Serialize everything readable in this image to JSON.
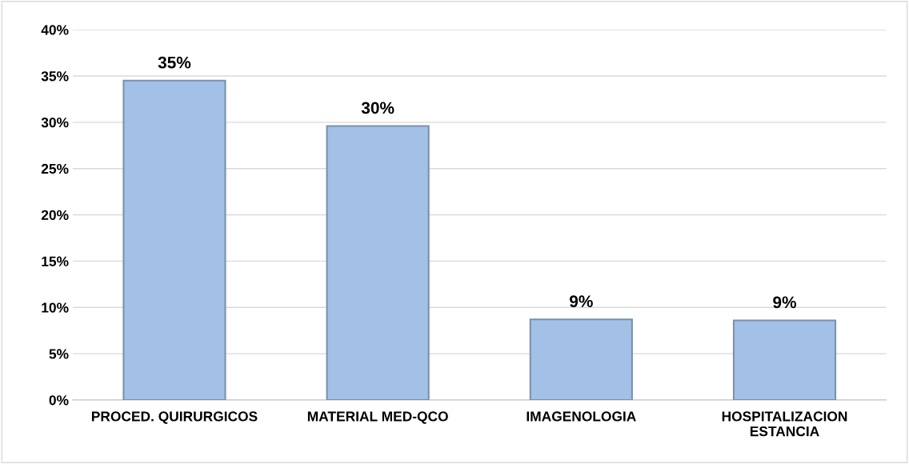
{
  "chart_data": {
    "type": "bar",
    "categories": [
      "PROCED. QUIRURGICOS",
      "MATERIAL MED-QCO",
      "IMAGENOLOGIA",
      "HOSPITALIZACION\nESTANCIA"
    ],
    "values": [
      34.5,
      29.6,
      8.7,
      8.6
    ],
    "value_labels": [
      "35%",
      "30%",
      "9%",
      "9%"
    ],
    "color": "#a3c1e7",
    "ylim": [
      0,
      40
    ],
    "yticks": [
      {
        "value": 0,
        "label": "0%"
      },
      {
        "value": 5,
        "label": "5%"
      },
      {
        "value": 10,
        "label": "10%"
      },
      {
        "value": 15,
        "label": "15%"
      },
      {
        "value": 20,
        "label": "20%"
      },
      {
        "value": 25,
        "label": "25%"
      },
      {
        "value": 30,
        "label": "30%"
      },
      {
        "value": 35,
        "label": "35%"
      },
      {
        "value": 40,
        "label": "40%"
      }
    ],
    "grid": "y"
  }
}
